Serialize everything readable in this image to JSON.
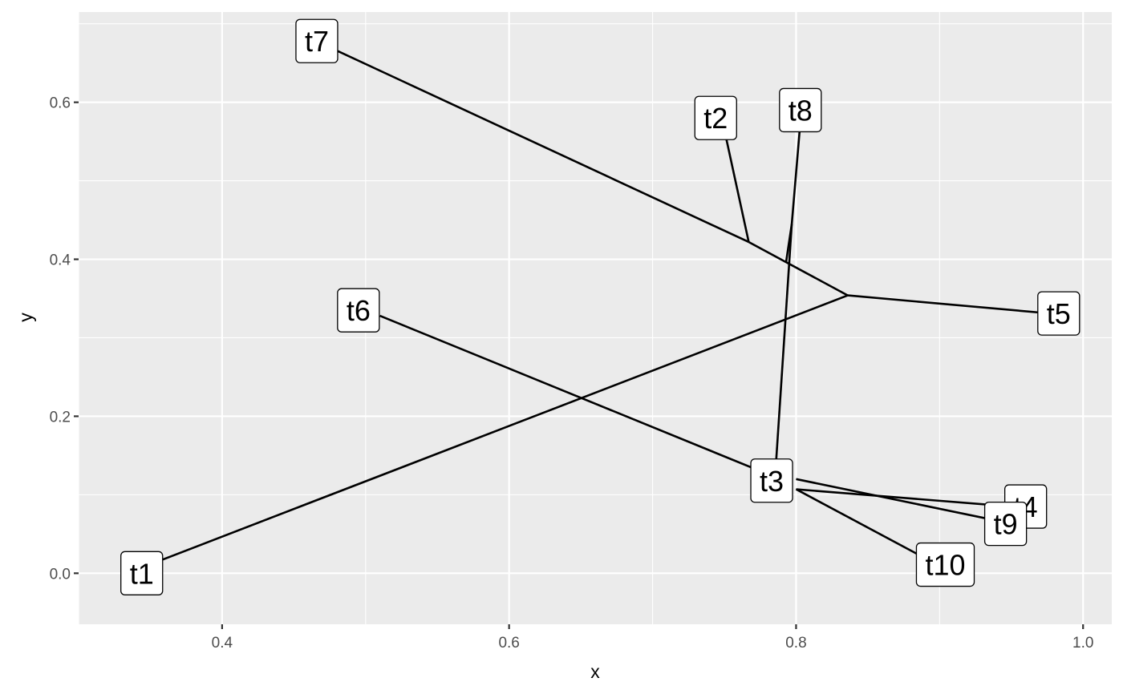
{
  "chart_data": {
    "type": "tree",
    "xlabel": "x",
    "ylabel": "y",
    "xlim": [
      0.3,
      1.02
    ],
    "ylim": [
      -0.065,
      0.715
    ],
    "x_ticks": [
      0.4,
      0.6,
      0.8,
      1.0
    ],
    "x_tick_labels": [
      "0.4",
      "0.6",
      "0.8",
      "1.0"
    ],
    "y_ticks": [
      0.0,
      0.2,
      0.4,
      0.6
    ],
    "y_tick_labels": [
      "0.0",
      "0.2",
      "0.4",
      "0.6"
    ],
    "grid": true,
    "tips": [
      {
        "label": "t1",
        "x": 0.344,
        "y": 0.0
      },
      {
        "label": "t2",
        "x": 0.744,
        "y": 0.58
      },
      {
        "label": "t3",
        "x": 0.783,
        "y": 0.118
      },
      {
        "label": "t4",
        "x": 0.96,
        "y": 0.085
      },
      {
        "label": "t5",
        "x": 0.983,
        "y": 0.331
      },
      {
        "label": "t6",
        "x": 0.495,
        "y": 0.335
      },
      {
        "label": "t7",
        "x": 0.466,
        "y": 0.678
      },
      {
        "label": "t8",
        "x": 0.803,
        "y": 0.59
      },
      {
        "label": "t9",
        "x": 0.946,
        "y": 0.063
      },
      {
        "label": "t10",
        "x": 0.904,
        "y": 0.011
      }
    ],
    "edges": [
      [
        [
          0.348,
          0.01
        ],
        [
          0.836,
          0.354
        ]
      ],
      [
        [
          0.836,
          0.354
        ],
        [
          0.977,
          0.331
        ]
      ],
      [
        [
          0.836,
          0.354
        ],
        [
          0.767,
          0.422
        ]
      ],
      [
        [
          0.767,
          0.422
        ],
        [
          0.475,
          0.67
        ]
      ],
      [
        [
          0.767,
          0.422
        ],
        [
          0.75,
          0.565
        ]
      ],
      [
        [
          0.793,
          0.396
        ],
        [
          0.797,
          0.445
        ]
      ],
      [
        [
          0.797,
          0.445
        ],
        [
          0.803,
          0.575
        ]
      ],
      [
        [
          0.797,
          0.445
        ],
        [
          0.786,
          0.14
        ]
      ],
      [
        [
          0.51,
          0.328
        ],
        [
          0.786,
          0.122
        ]
      ],
      [
        [
          0.8,
          0.12
        ],
        [
          0.94,
          0.067
        ]
      ],
      [
        [
          0.8,
          0.107
        ],
        [
          0.95,
          0.085
        ]
      ],
      [
        [
          0.8,
          0.107
        ],
        [
          0.884,
          0.025
        ]
      ]
    ]
  }
}
